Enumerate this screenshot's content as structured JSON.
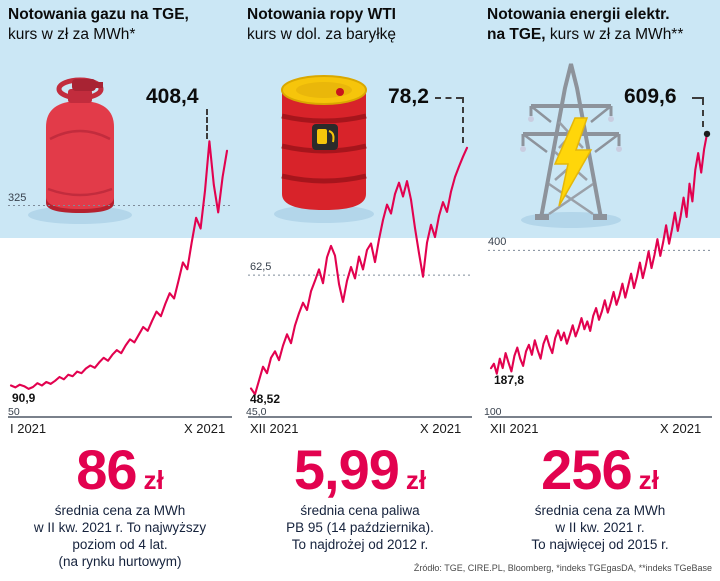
{
  "colors": {
    "sky": "#cbe7f5",
    "line": "#e2024f",
    "accent": "#e2024f",
    "text_dark": "#15223c"
  },
  "icons": [
    "gas-canister-icon",
    "oil-barrel-icon",
    "power-pylon-icon",
    "lightning-bolt-icon"
  ],
  "footer": "Źródło: TGE, CIRE.PL, Bloomberg, *indeks TGEgasDA, **indeks TGeBase",
  "panels": [
    {
      "title": {
        "line1_bold": "Notowania gazu na TGE,",
        "line1_rest": "",
        "line2_bold": "",
        "line2_rest": "kurs w zł za MWh*"
      },
      "peak": "408,4",
      "grid": "325",
      "base": "50",
      "start": "90,9",
      "x_start": "I 2021",
      "x_end": "X 2021",
      "stat": {
        "value": "86",
        "unit": "zł"
      },
      "desc": [
        "średnia cena za MWh",
        "w II kw. 2021 r. To najwyższy",
        "poziom od 4 lat.",
        "(na rynku hurtowym)"
      ]
    },
    {
      "title": {
        "line1_bold": "Notowania ropy WTI",
        "line1_rest": "",
        "line2_bold": "",
        "line2_rest": "kurs w dol. za baryłkę"
      },
      "peak": "78,2",
      "grid": "62,5",
      "base": "45,0",
      "start": "48,52",
      "x_start": "XII 2021",
      "x_end": "X 2021",
      "stat": {
        "value": "5,99",
        "unit": "zł"
      },
      "desc": [
        "średnia cena paliwa",
        "PB 95 (14 października).",
        "To najdrożej od 2012 r."
      ]
    },
    {
      "title": {
        "line1_bold": "Notowania energii elektr.",
        "line1_rest": "",
        "line2_bold": "na TGE,",
        "line2_rest": " kurs w zł za MWh**"
      },
      "peak": "609,6",
      "grid": "400",
      "base": "100",
      "start": "187,8",
      "x_start": "XII 2021",
      "x_end": "X 2021",
      "stat": {
        "value": "256",
        "unit": "zł"
      },
      "desc": [
        "średnia cena za MWh",
        "w II kw. 2021 r.",
        "To najwięcej od 2015 r."
      ]
    }
  ],
  "chart_data": [
    {
      "type": "line",
      "title": "Notowania gazu na TGE",
      "ylabel": "kurs w zł za MWh",
      "x_start": "I 2021",
      "x_end": "X 2021",
      "ylim": [
        50,
        440
      ],
      "gridline": 325,
      "start_value": 90.9,
      "peak_value": 408.4,
      "legend_position": "none",
      "grid": "dashed-single",
      "values": [
        90.9,
        88.5,
        92,
        90,
        86.5,
        89,
        94,
        91,
        95.5,
        93,
        97,
        102,
        99,
        105,
        103,
        109,
        107,
        113,
        117,
        114,
        121,
        127,
        123,
        131,
        137,
        133,
        143,
        151,
        147,
        157,
        167,
        162,
        175,
        187,
        181,
        197,
        211,
        204,
        227,
        251,
        242,
        277,
        309,
        295,
        344,
        408.4,
        352,
        316,
        362,
        396
      ],
      "end_dot": false
    },
    {
      "type": "line",
      "title": "Notowania ropy WTI",
      "ylabel": "kurs w dol. za baryłkę",
      "x_start": "XII 2021",
      "x_end": "X 2021",
      "ylim": [
        45,
        82
      ],
      "gridline": 62.5,
      "start_value": 48.52,
      "peak_value": 78.2,
      "legend_position": "none",
      "grid": "dashed-single",
      "values": [
        48.52,
        47.8,
        49.5,
        51.2,
        50.4,
        52.3,
        53.1,
        52.0,
        53.8,
        55.2,
        54.1,
        56.3,
        57.8,
        59.1,
        58.2,
        60.5,
        61.8,
        63.2,
        61.5,
        64.7,
        66.1,
        64.9,
        61.4,
        59.2,
        61.8,
        63.5,
        62.1,
        64.8,
        63.2,
        65.6,
        66.4,
        64.1,
        66.9,
        69.3,
        71.2,
        70.1,
        72.5,
        73.9,
        72.2,
        74.1,
        71.8,
        68.3,
        65.2,
        62.3,
        66.5,
        68.7,
        67.2,
        69.8,
        71.5,
        70.3,
        72.8,
        74.6,
        75.9,
        77.1,
        78.2
      ],
      "end_dot": false
    },
    {
      "type": "line",
      "title": "Notowania energii elektrycznej na TGE",
      "ylabel": "kurs w zł za MWh",
      "x_start": "XII 2021",
      "x_end": "X 2021",
      "ylim": [
        100,
        640
      ],
      "gridline": 400,
      "start_value": 187.8,
      "peak_value": 609.6,
      "legend_position": "none",
      "grid": "dashed-single",
      "values": [
        187.8,
        196,
        178,
        205,
        188,
        215,
        198,
        182,
        210,
        225,
        205,
        192,
        218,
        230,
        212,
        238,
        220,
        205,
        232,
        246,
        228,
        215,
        242,
        256,
        238,
        252,
        232,
        248,
        265,
        245,
        260,
        278,
        258,
        272,
        255,
        282,
        296,
        275,
        290,
        310,
        288,
        305,
        325,
        302,
        318,
        340,
        315,
        336,
        358,
        332,
        352,
        378,
        350,
        372,
        398,
        368,
        392,
        420,
        390,
        415,
        445,
        412,
        438,
        468,
        435,
        462,
        495,
        460,
        520,
        488,
        545,
        575,
        540,
        582,
        609.6
      ],
      "end_dot": true
    }
  ]
}
